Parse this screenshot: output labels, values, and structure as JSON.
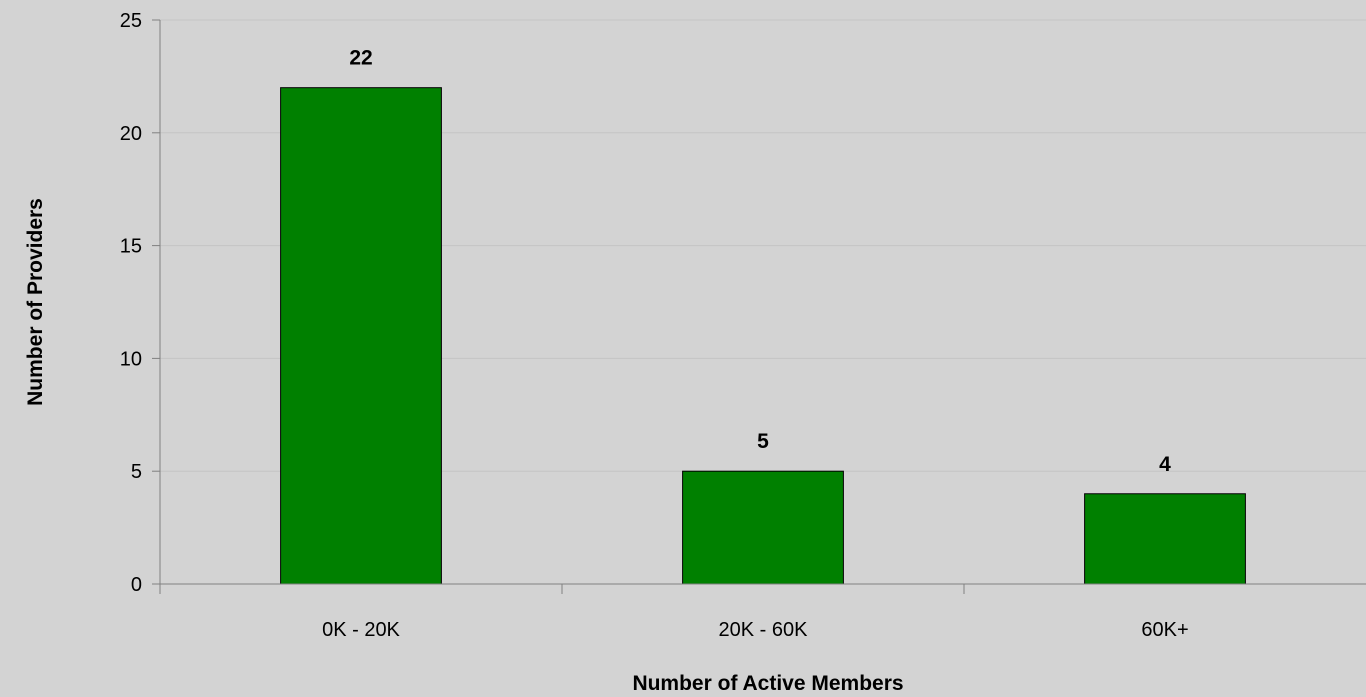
{
  "chart_data": {
    "type": "bar",
    "categories": [
      "0K - 20K",
      "20K - 60K",
      "60K+"
    ],
    "values": [
      22,
      5,
      4
    ],
    "data_labels": [
      "22",
      "5",
      "4"
    ],
    "xlabel": "Number of Active Members",
    "ylabel": "Number of Providers",
    "ylim": [
      0,
      25
    ],
    "yticks": [
      0,
      5,
      10,
      15,
      20,
      25
    ],
    "grid": true,
    "legend": "none",
    "colors": {
      "background": "#d3d3d3",
      "bar_fill": "#008000",
      "bar_stroke": "#000000",
      "gridline": "#c4c4c4",
      "axis": "#808080"
    }
  }
}
